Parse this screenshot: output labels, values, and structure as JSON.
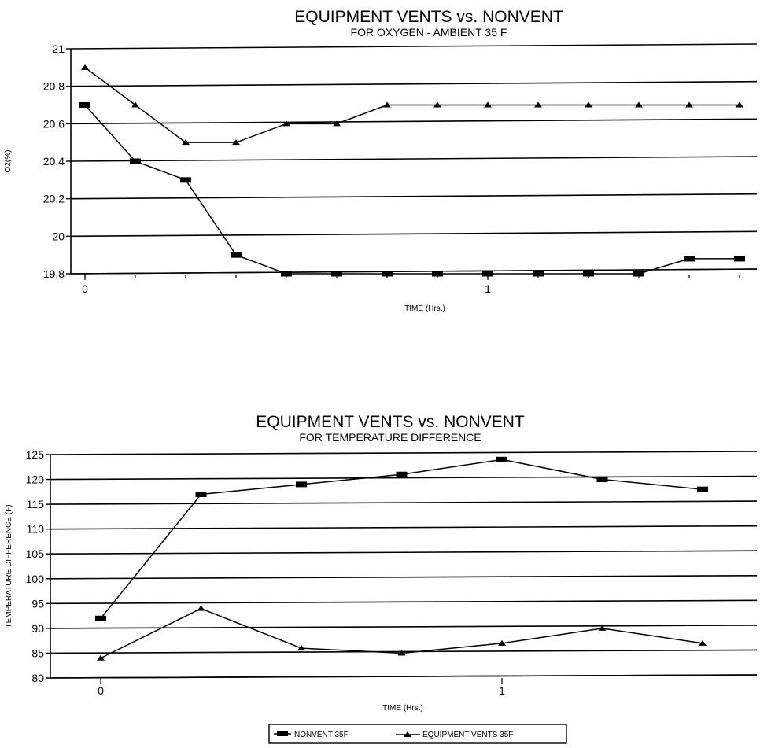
{
  "chart_data": [
    {
      "type": "line",
      "title": "EQUIPMENT VENTS vs. NONVENT",
      "subtitle": "FOR OXYGEN - AMBIENT 35 F",
      "xlabel": "TIME (Hrs.)",
      "ylabel": "O2(%)",
      "ylim": [
        19.8,
        21
      ],
      "yticks": [
        "19.8",
        "20",
        "20.2",
        "20.4",
        "20.6",
        "20.8",
        "21"
      ],
      "xticks": [
        "0",
        "1"
      ],
      "x": [
        0,
        0.125,
        0.25,
        0.375,
        0.5,
        0.625,
        0.75,
        0.875,
        1.0,
        1.125,
        1.25,
        1.375,
        1.5,
        1.625
      ],
      "grid": true,
      "series": [
        {
          "name": "NONVENT 35F",
          "marker": "square",
          "values": [
            20.7,
            20.4,
            20.3,
            19.9,
            19.8,
            19.8,
            19.8,
            19.8,
            19.8,
            19.8,
            19.8,
            19.8,
            19.88,
            19.88
          ]
        },
        {
          "name": "EQUIPMENT VENTS 35F",
          "marker": "triangle",
          "values": [
            20.9,
            20.7,
            20.5,
            20.5,
            20.6,
            20.6,
            20.7,
            20.7,
            20.7,
            20.7,
            20.7,
            20.7,
            20.7,
            20.7
          ]
        }
      ]
    },
    {
      "type": "line",
      "title": "EQUIPMENT VENTS vs. NONVENT",
      "subtitle": "FOR TEMPERATURE DIFFERENCE",
      "xlabel": "TIME (Hrs.)",
      "ylabel": "TEMPERATURE DIFFERENCE (F)",
      "ylim": [
        80,
        125
      ],
      "yticks": [
        "80",
        "85",
        "90",
        "95",
        "100",
        "105",
        "110",
        "115",
        "120",
        "125"
      ],
      "xticks": [
        "0",
        "1"
      ],
      "x": [
        0,
        0.25,
        0.5,
        0.75,
        1.0,
        1.25,
        1.5
      ],
      "grid": true,
      "legend": "bottom",
      "series": [
        {
          "name": "NONVENT 35F",
          "marker": "square",
          "values": [
            92,
            117,
            119,
            121,
            124,
            120,
            118
          ]
        },
        {
          "name": "EQUIPMENT VENTS 35F",
          "marker": "triangle",
          "values": [
            84,
            94,
            86,
            85,
            87,
            90,
            87
          ]
        }
      ]
    }
  ]
}
